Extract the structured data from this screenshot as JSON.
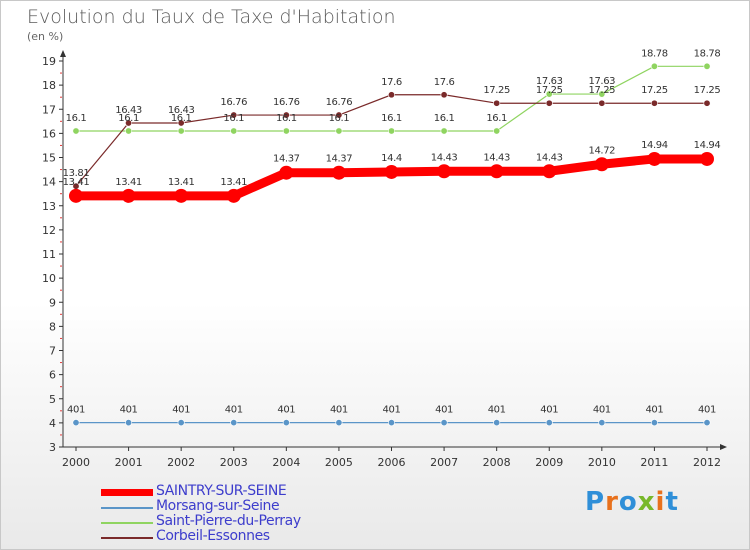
{
  "title": "Evolution du Taux de Taxe d'Habitation",
  "unit_label": "(en %)",
  "logo_text": "Proxiti",
  "chart_data": {
    "type": "line",
    "x": [
      2000,
      2001,
      2002,
      2003,
      2004,
      2005,
      2006,
      2007,
      2008,
      2009,
      2010,
      2011,
      2012
    ],
    "ylim": [
      3,
      19
    ],
    "yticks": [
      3,
      4,
      5,
      6,
      7,
      8,
      9,
      10,
      11,
      12,
      13,
      14,
      15,
      16,
      17,
      18,
      19
    ],
    "grid": false,
    "legend_position": "bottom-left",
    "series": [
      {
        "name": "SAINTRY-SUR-SEINE",
        "color": "#ff0000",
        "values": [
          13.41,
          13.41,
          13.41,
          13.41,
          14.37,
          14.37,
          14.4,
          14.43,
          14.43,
          14.43,
          14.72,
          14.94,
          14.94
        ],
        "labels": [
          "13.41",
          "13.41",
          "13.41",
          "13.41",
          "14.37",
          "14.37",
          "14.4",
          "14.43",
          "14.43",
          "14.43",
          "14.72",
          "14.94",
          "14.94"
        ]
      },
      {
        "name": "Morsang-sur-Seine",
        "color": "#5a95c8",
        "values": [
          4.01,
          4.01,
          4.01,
          4.01,
          4.01,
          4.01,
          4.01,
          4.01,
          4.01,
          4.01,
          4.01,
          4.01,
          4.01
        ],
        "labels": [
          "401",
          "401",
          "401",
          "401",
          "401",
          "401",
          "401",
          "401",
          "401",
          "401",
          "401",
          "401",
          "401"
        ]
      },
      {
        "name": "Saint-Pierre-du-Perray",
        "color": "#8fd460",
        "values": [
          16.1,
          16.1,
          16.1,
          16.1,
          16.1,
          16.1,
          16.1,
          16.1,
          16.1,
          17.63,
          17.63,
          18.78,
          18.78
        ],
        "labels": [
          "16.1",
          "16.1",
          "16.1",
          "16.1",
          "16.1",
          "16.1",
          "16.1",
          "16.1",
          "16.1",
          "17.63",
          "17.63",
          "18.78",
          "18.78"
        ]
      },
      {
        "name": "Corbeil-Essonnes",
        "color": "#7a2a2a",
        "values": [
          13.81,
          16.43,
          16.43,
          16.76,
          16.76,
          16.76,
          17.6,
          17.6,
          17.25,
          17.25,
          17.25,
          17.25,
          17.25
        ],
        "labels": [
          "13.81",
          "16.43",
          "16.43",
          "16.76",
          "16.76",
          "16.76",
          "17.6",
          "17.6",
          "17.25",
          "17.25",
          "17.25",
          "17.25",
          "17.25"
        ]
      }
    ]
  }
}
